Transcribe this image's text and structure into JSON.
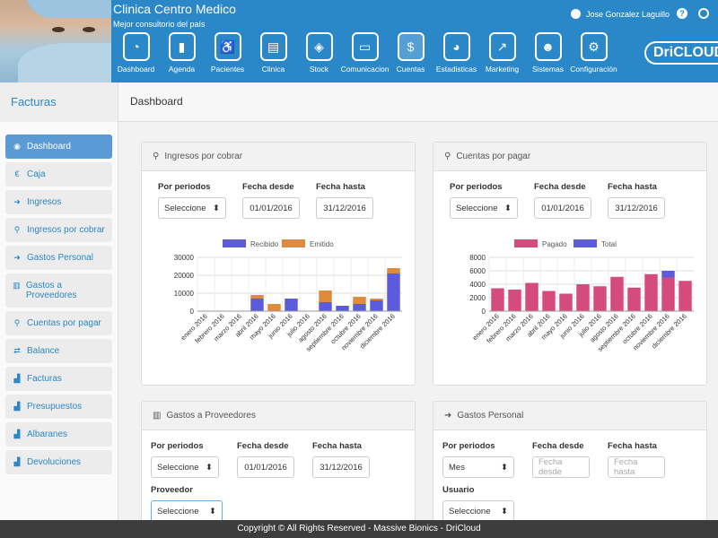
{
  "header": {
    "clinic_name": "Clinica Centro Medico",
    "clinic_sub": "Mejor consultorio del país",
    "user_name": "Jose Gonzalez Laguillo",
    "logo": "DriCLOUD"
  },
  "nav": [
    {
      "label": "Dashboard",
      "icon": "speedometer-icon"
    },
    {
      "label": "Agenda",
      "icon": "book-icon"
    },
    {
      "label": "Pacientes",
      "icon": "wheelchair-icon"
    },
    {
      "label": "Clinica",
      "icon": "clipboard-icon"
    },
    {
      "label": "Stock",
      "icon": "boxes-icon"
    },
    {
      "label": "Comunicacion",
      "icon": "chat-icon"
    },
    {
      "label": "Cuentas",
      "icon": "money-icon"
    },
    {
      "label": "Estadisticas",
      "icon": "pie-chart-icon"
    },
    {
      "label": "Marketing",
      "icon": "trend-icon"
    },
    {
      "label": "Sistemas",
      "icon": "user-gear-icon"
    },
    {
      "label": "Configuración",
      "icon": "gears-icon"
    }
  ],
  "subheader": {
    "section": "Facturas",
    "title": "Dashboard"
  },
  "sidebar": [
    {
      "label": "Dashboard",
      "icon": "dashboard-icon"
    },
    {
      "label": "Caja",
      "icon": "euro-icon"
    },
    {
      "label": "Ingresos",
      "icon": "sign-in-icon"
    },
    {
      "label": "Ingresos por cobrar",
      "icon": "stamp-icon"
    },
    {
      "label": "Gastos Personal",
      "icon": "sign-out-icon"
    },
    {
      "label": "Gastos a Proveedores",
      "icon": "columns-icon"
    },
    {
      "label": "Cuentas por pagar",
      "icon": "stamp-icon"
    },
    {
      "label": "Balance",
      "icon": "exchange-icon"
    },
    {
      "label": "Facturas",
      "icon": "bar-chart-icon"
    },
    {
      "label": "Presupuestos",
      "icon": "bar-chart-icon"
    },
    {
      "label": "Albaranes",
      "icon": "bar-chart-icon"
    },
    {
      "label": "Devoluciones",
      "icon": "bar-chart-icon"
    }
  ],
  "panels": {
    "ingresos": {
      "title": "Ingresos por cobrar",
      "periodos_label": "Por periodos",
      "periodos_value": "Seleccione",
      "desde_label": "Fecha desde",
      "desde_value": "01/01/2016",
      "hasta_label": "Fecha hasta",
      "hasta_value": "31/12/2016"
    },
    "cuentas": {
      "title": "Cuentas por pagar",
      "periodos_label": "Por periodos",
      "periodos_value": "Seleccione",
      "desde_label": "Fecha desde",
      "desde_value": "01/01/2016",
      "hasta_label": "Fecha hasta",
      "hasta_value": "31/12/2016"
    },
    "gastos_prov": {
      "title": "Gastos a Proveedores",
      "periodos_label": "Por periodos",
      "periodos_value": "Seleccione",
      "desde_label": "Fecha desde",
      "desde_value": "01/01/2016",
      "hasta_label": "Fecha hasta",
      "hasta_value": "31/12/2016",
      "proveedor_label": "Proveedor",
      "proveedor_value": "Seleccione"
    },
    "gastos_pers": {
      "title": "Gastos Personal",
      "periodos_label": "Por periodos",
      "periodos_value": "Mes",
      "desde_label": "Fecha desde",
      "desde_placeholder": "Fecha desde",
      "hasta_label": "Fecha hasta",
      "hasta_placeholder": "Fecha hasta",
      "usuario_label": "Usuario",
      "usuario_value": "Seleccione"
    }
  },
  "footer": "Copyright © All Rights Reserved - Massive Bionics - DriCloud",
  "chart_data": [
    {
      "type": "bar",
      "stacked": true,
      "categories": [
        "enero 2016",
        "febrero 2016",
        "marzo 2016",
        "abril 2016",
        "mayo 2016",
        "junio 2016",
        "julio 2016",
        "agosto 2016",
        "septiembre 2016",
        "octubre 2016",
        "noviembre 2016",
        "diciembre 2016"
      ],
      "series": [
        {
          "name": "Recibido",
          "color": "#5b5bdb",
          "values": [
            0,
            0,
            0,
            7000,
            0,
            7000,
            0,
            5000,
            3000,
            4000,
            6000,
            21000
          ]
        },
        {
          "name": "Emitido",
          "color": "#e08a3c",
          "values": [
            0,
            0,
            0,
            2000,
            4000,
            0,
            0,
            6500,
            0,
            4000,
            1000,
            3000
          ]
        }
      ],
      "yticks": [
        0,
        10000,
        20000,
        30000
      ],
      "ylim": [
        0,
        30000
      ],
      "legend": "top"
    },
    {
      "type": "bar",
      "stacked": true,
      "categories": [
        "enero 2016",
        "febrero 2016",
        "marzo 2016",
        "abril 2016",
        "mayo 2016",
        "junio 2016",
        "julio 2016",
        "agosto 2016",
        "septiembre 2016",
        "octubre 2016",
        "noviembre 2016",
        "diciembre 2016"
      ],
      "series": [
        {
          "name": "Pagado",
          "color": "#d64b7e",
          "values": [
            3400,
            3200,
            4200,
            3000,
            2600,
            4000,
            3700,
            5100,
            3500,
            5500,
            5000,
            4500
          ]
        },
        {
          "name": "Total",
          "color": "#5b5bdb",
          "values": [
            0,
            0,
            0,
            0,
            0,
            0,
            0,
            0,
            0,
            0,
            1000,
            0
          ]
        }
      ],
      "yticks": [
        0,
        2000,
        4000,
        6000,
        8000
      ],
      "ylim": [
        0,
        8000
      ],
      "legend": "top"
    }
  ]
}
